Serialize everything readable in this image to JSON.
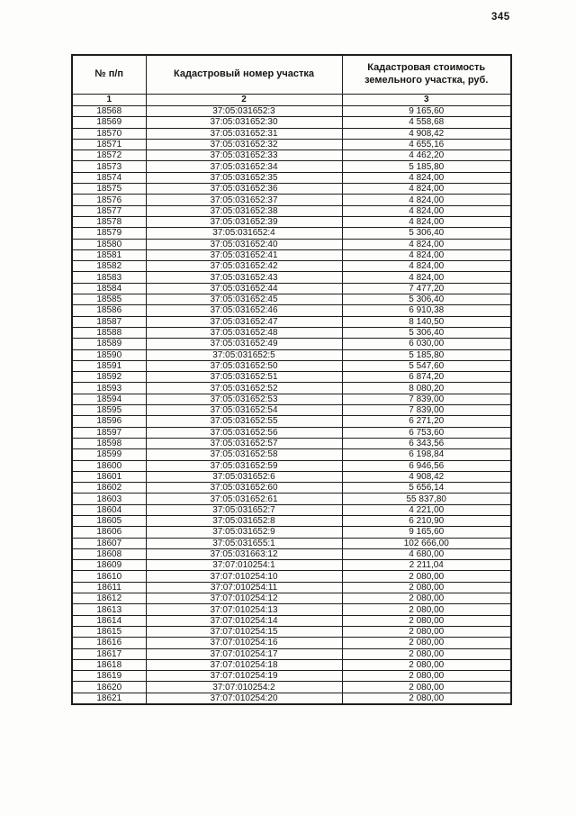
{
  "page": {
    "number": "345"
  },
  "table": {
    "header": {
      "col1": "№ п/п",
      "col2": "Кадастровый номер участка",
      "col3": "Кадастровая стоимость земельного участка, руб."
    },
    "column_numbers": [
      "1",
      "2",
      "3"
    ],
    "rows": [
      [
        "18568",
        "37:05:031652:3",
        "9 165,60"
      ],
      [
        "18569",
        "37:05:031652:30",
        "4 558,68"
      ],
      [
        "18570",
        "37:05:031652:31",
        "4 908,42"
      ],
      [
        "18571",
        "37:05:031652:32",
        "4 655,16"
      ],
      [
        "18572",
        "37:05:031652:33",
        "4 462,20"
      ],
      [
        "18573",
        "37:05:031652:34",
        "5 185,80"
      ],
      [
        "18574",
        "37:05:031652:35",
        "4 824,00"
      ],
      [
        "18575",
        "37:05:031652:36",
        "4 824,00"
      ],
      [
        "18576",
        "37:05:031652:37",
        "4 824,00"
      ],
      [
        "18577",
        "37:05:031652:38",
        "4 824,00"
      ],
      [
        "18578",
        "37:05:031652:39",
        "4 824,00"
      ],
      [
        "18579",
        "37:05:031652:4",
        "5 306,40"
      ],
      [
        "18580",
        "37:05:031652:40",
        "4 824,00"
      ],
      [
        "18581",
        "37:05:031652:41",
        "4 824,00"
      ],
      [
        "18582",
        "37:05:031652:42",
        "4 824,00"
      ],
      [
        "18583",
        "37:05:031652:43",
        "4 824,00"
      ],
      [
        "18584",
        "37:05:031652:44",
        "7 477,20"
      ],
      [
        "18585",
        "37:05:031652:45",
        "5 306,40"
      ],
      [
        "18586",
        "37:05:031652:46",
        "6 910,38"
      ],
      [
        "18587",
        "37:05:031652:47",
        "8 140,50"
      ],
      [
        "18588",
        "37:05:031652:48",
        "5 306,40"
      ],
      [
        "18589",
        "37:05:031652:49",
        "6 030,00"
      ],
      [
        "18590",
        "37:05:031652:5",
        "5 185,80"
      ],
      [
        "18591",
        "37:05:031652:50",
        "5 547,60"
      ],
      [
        "18592",
        "37:05:031652:51",
        "6 874,20"
      ],
      [
        "18593",
        "37:05:031652:52",
        "8 080,20"
      ],
      [
        "18594",
        "37:05:031652:53",
        "7 839,00"
      ],
      [
        "18595",
        "37:05:031652:54",
        "7 839,00"
      ],
      [
        "18596",
        "37:05:031652:55",
        "6 271,20"
      ],
      [
        "18597",
        "37:05:031652:56",
        "6 753,60"
      ],
      [
        "18598",
        "37:05:031652:57",
        "6 343,56"
      ],
      [
        "18599",
        "37:05:031652:58",
        "6 198,84"
      ],
      [
        "18600",
        "37:05:031652:59",
        "6 946,56"
      ],
      [
        "18601",
        "37:05:031652:6",
        "4 908,42"
      ],
      [
        "18602",
        "37:05:031652:60",
        "5 656,14"
      ],
      [
        "18603",
        "37:05:031652:61",
        "55 837,80"
      ],
      [
        "18604",
        "37:05:031652:7",
        "4 221,00"
      ],
      [
        "18605",
        "37:05:031652:8",
        "6 210,90"
      ],
      [
        "18606",
        "37:05:031652:9",
        "9 165,60"
      ],
      [
        "18607",
        "37:05:031655:1",
        "102 666,00"
      ],
      [
        "18608",
        "37:05:031663:12",
        "4 680,00"
      ],
      [
        "18609",
        "37:07:010254:1",
        "2 211,04"
      ],
      [
        "18610",
        "37:07:010254:10",
        "2 080,00"
      ],
      [
        "18611",
        "37:07:010254:11",
        "2 080,00"
      ],
      [
        "18612",
        "37:07:010254:12",
        "2 080,00"
      ],
      [
        "18613",
        "37:07:010254:13",
        "2 080,00"
      ],
      [
        "18614",
        "37:07:010254:14",
        "2 080,00"
      ],
      [
        "18615",
        "37:07:010254:15",
        "2 080,00"
      ],
      [
        "18616",
        "37:07:010254:16",
        "2 080,00"
      ],
      [
        "18617",
        "37:07:010254:17",
        "2 080,00"
      ],
      [
        "18618",
        "37:07:010254:18",
        "2 080,00"
      ],
      [
        "18619",
        "37:07:010254:19",
        "2 080,00"
      ],
      [
        "18620",
        "37:07:010254:2",
        "2 080,00"
      ],
      [
        "18621",
        "37:07:010254:20",
        "2 080,00"
      ]
    ]
  }
}
